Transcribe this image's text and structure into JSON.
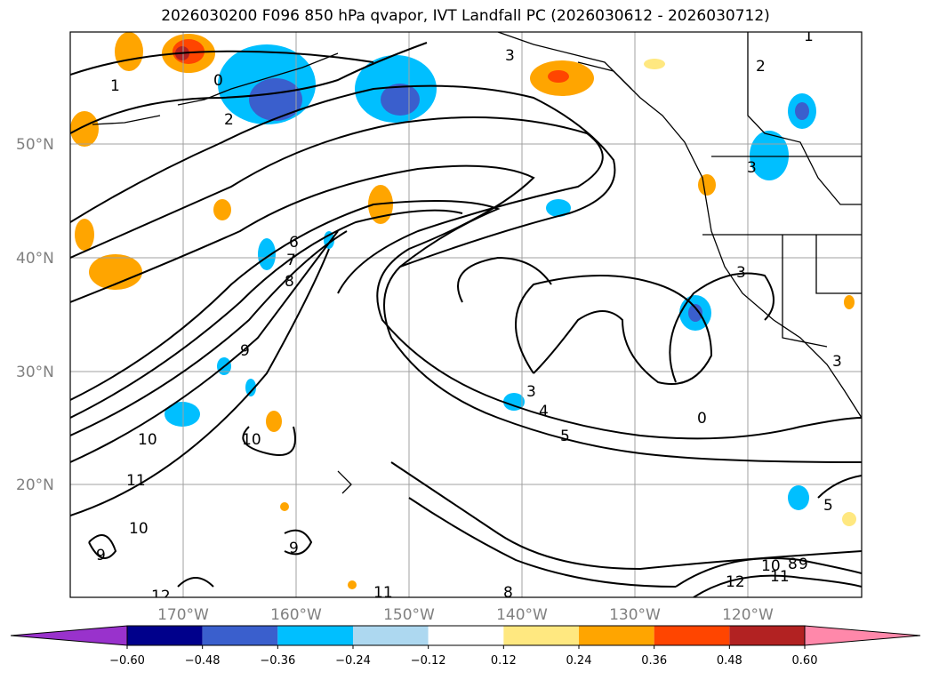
{
  "title": "2026030200 F096 850 hPa qvapor, IVT Landfall PC (2026030612 - 2026030712)",
  "lon_labels": [
    "170°W",
    "160°W",
    "150°W",
    "140°W",
    "130°W",
    "120°W"
  ],
  "lat_labels": [
    "50°N",
    "40°N",
    "30°N",
    "20°N"
  ],
  "colorbar": {
    "colors": [
      "#9932cc",
      "#00008b",
      "#3a5fcd",
      "#00bfff",
      "#add8f0",
      "#ffffff",
      "#ffe880",
      "#ffa500",
      "#ff4500",
      "#b22222",
      "#ff88aa"
    ],
    "tick_labels": [
      "−0.60",
      "−0.48",
      "−0.36",
      "−0.24",
      "−0.12",
      "0.12",
      "0.24",
      "0.36",
      "0.48",
      "0.60"
    ]
  },
  "contour_labels": [
    "0",
    "1",
    "1",
    "2",
    "2",
    "3",
    "3",
    "3",
    "3",
    "3",
    "4",
    "5",
    "5",
    "6",
    "7",
    "8",
    "8",
    "8",
    "9",
    "9",
    "9",
    "9",
    "10",
    "10",
    "10",
    "10",
    "11",
    "11",
    "11",
    "12",
    "12",
    "0"
  ]
}
